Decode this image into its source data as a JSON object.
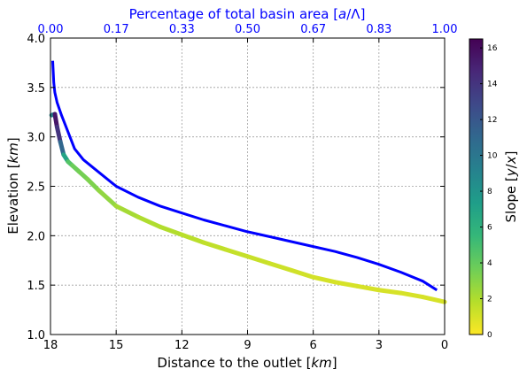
{
  "chart_data": {
    "type": "line",
    "xlabel": "Distance to the outlet [km]",
    "ylabel": "Elevation [km]",
    "top_xlabel": "Percentage of total basin area [a/Λ]",
    "colorbar_label": "Slope [y/x]",
    "xlim": [
      18,
      0
    ],
    "ylim": [
      1.0,
      4.0
    ],
    "x_ticks": [
      "18",
      "15",
      "12",
      "9",
      "6",
      "3",
      "0"
    ],
    "y_ticks": [
      "1.0",
      "1.5",
      "2.0",
      "2.5",
      "3.0",
      "3.5",
      "4.0"
    ],
    "top_ticks": [
      "0.00",
      "0.17",
      "0.33",
      "0.50",
      "0.67",
      "0.83",
      "1.00"
    ],
    "colorbar_ticks": [
      "0",
      "2",
      "4",
      "6",
      "8",
      "10",
      "12",
      "14",
      "16"
    ],
    "colorbar_range": [
      0,
      16.5
    ],
    "colormap": [
      "#fde725",
      "#b5de2b",
      "#6ece58",
      "#35b779",
      "#1f9e89",
      "#26828e",
      "#31688e",
      "#3e4989",
      "#482878",
      "#440154"
    ],
    "grid": true,
    "series": [
      {
        "style": "blue-line",
        "color": "#0000ff",
        "x": [
          17.9,
          17.85,
          17.8,
          17.7,
          17.5,
          17.2,
          16.9,
          16.5,
          16.0,
          15.0,
          14.0,
          13.0,
          12.0,
          11.0,
          10.0,
          9.0,
          8.0,
          7.0,
          6.0,
          5.0,
          4.0,
          3.0,
          2.0,
          1.0,
          0.35
        ],
        "y": [
          3.77,
          3.55,
          3.45,
          3.35,
          3.22,
          3.05,
          2.88,
          2.77,
          2.68,
          2.5,
          2.39,
          2.3,
          2.23,
          2.16,
          2.1,
          2.04,
          1.99,
          1.94,
          1.89,
          1.84,
          1.78,
          1.71,
          1.63,
          1.54,
          1.45
        ]
      },
      {
        "style": "slope-colored",
        "x": [
          17.95,
          17.8,
          17.7,
          17.55,
          17.4,
          17.2,
          17.0,
          16.7,
          16.3,
          15.8,
          15.0,
          14.0,
          13.0,
          12.0,
          11.0,
          10.0,
          9.0,
          8.0,
          7.0,
          6.0,
          5.0,
          4.0,
          3.0,
          2.0,
          1.0,
          0.0
        ],
        "y": [
          3.22,
          3.23,
          3.1,
          2.95,
          2.82,
          2.75,
          2.71,
          2.65,
          2.57,
          2.46,
          2.3,
          2.19,
          2.09,
          2.01,
          1.93,
          1.86,
          1.79,
          1.72,
          1.65,
          1.58,
          1.53,
          1.49,
          1.45,
          1.42,
          1.38,
          1.33
        ],
        "slope": [
          1.5,
          16,
          15,
          13,
          9,
          5,
          4,
          3.5,
          3.5,
          3,
          2.5,
          2,
          2,
          1.8,
          1.6,
          1.5,
          1.4,
          1.3,
          1.2,
          1.1,
          1.0,
          1.0,
          1.0,
          1.0,
          1.0,
          1.0
        ]
      }
    ]
  }
}
